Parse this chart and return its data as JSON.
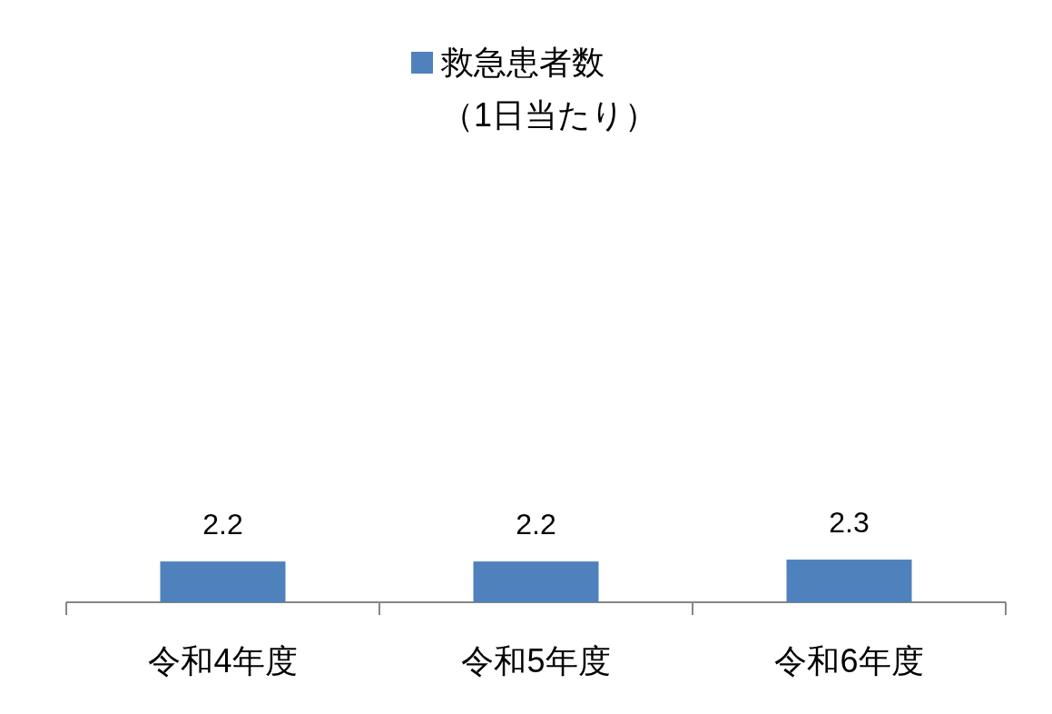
{
  "chart_data": {
    "type": "bar",
    "categories": [
      "令和4年度",
      "令和5年度",
      "令和6年度"
    ],
    "series": [
      {
        "name": "救急患者数（1日当たり）",
        "color": "#4f81bd",
        "values": [
          2.2,
          2.2,
          2.3
        ]
      }
    ],
    "data_labels": true,
    "legend": "top"
  }
}
